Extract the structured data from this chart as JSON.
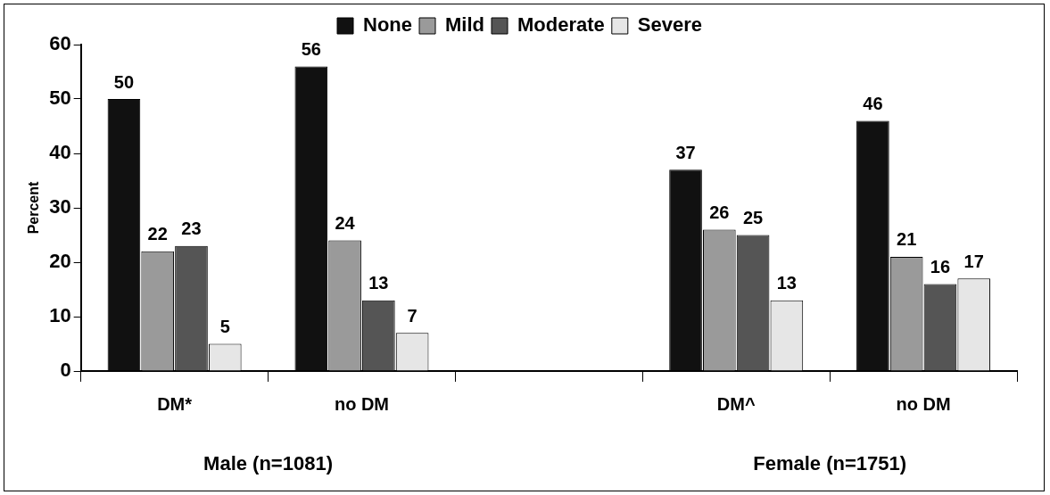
{
  "chart_data": {
    "type": "bar",
    "ylabel": "Percent",
    "categories": [
      "DM*",
      "no DM",
      null,
      "DM^",
      "no DM"
    ],
    "series": [
      {
        "name": "None",
        "color": "#111111",
        "values": [
          50,
          56,
          null,
          37,
          46
        ]
      },
      {
        "name": "Mild",
        "color": "#9a9a9a",
        "values": [
          22,
          24,
          null,
          26,
          21
        ]
      },
      {
        "name": "Moderate",
        "color": "#555555",
        "values": [
          23,
          13,
          null,
          25,
          16
        ]
      },
      {
        "name": "Severe",
        "color": "#e6e6e6",
        "values": [
          5,
          7,
          null,
          13,
          17
        ]
      }
    ],
    "ylim": [
      0,
      60
    ],
    "yticks": [
      0,
      10,
      20,
      30,
      40,
      50,
      60
    ],
    "grid": false,
    "legend": "top",
    "data_labels": true,
    "annotations": [
      "Male (n=1081)",
      "Female (n=1751)"
    ]
  }
}
